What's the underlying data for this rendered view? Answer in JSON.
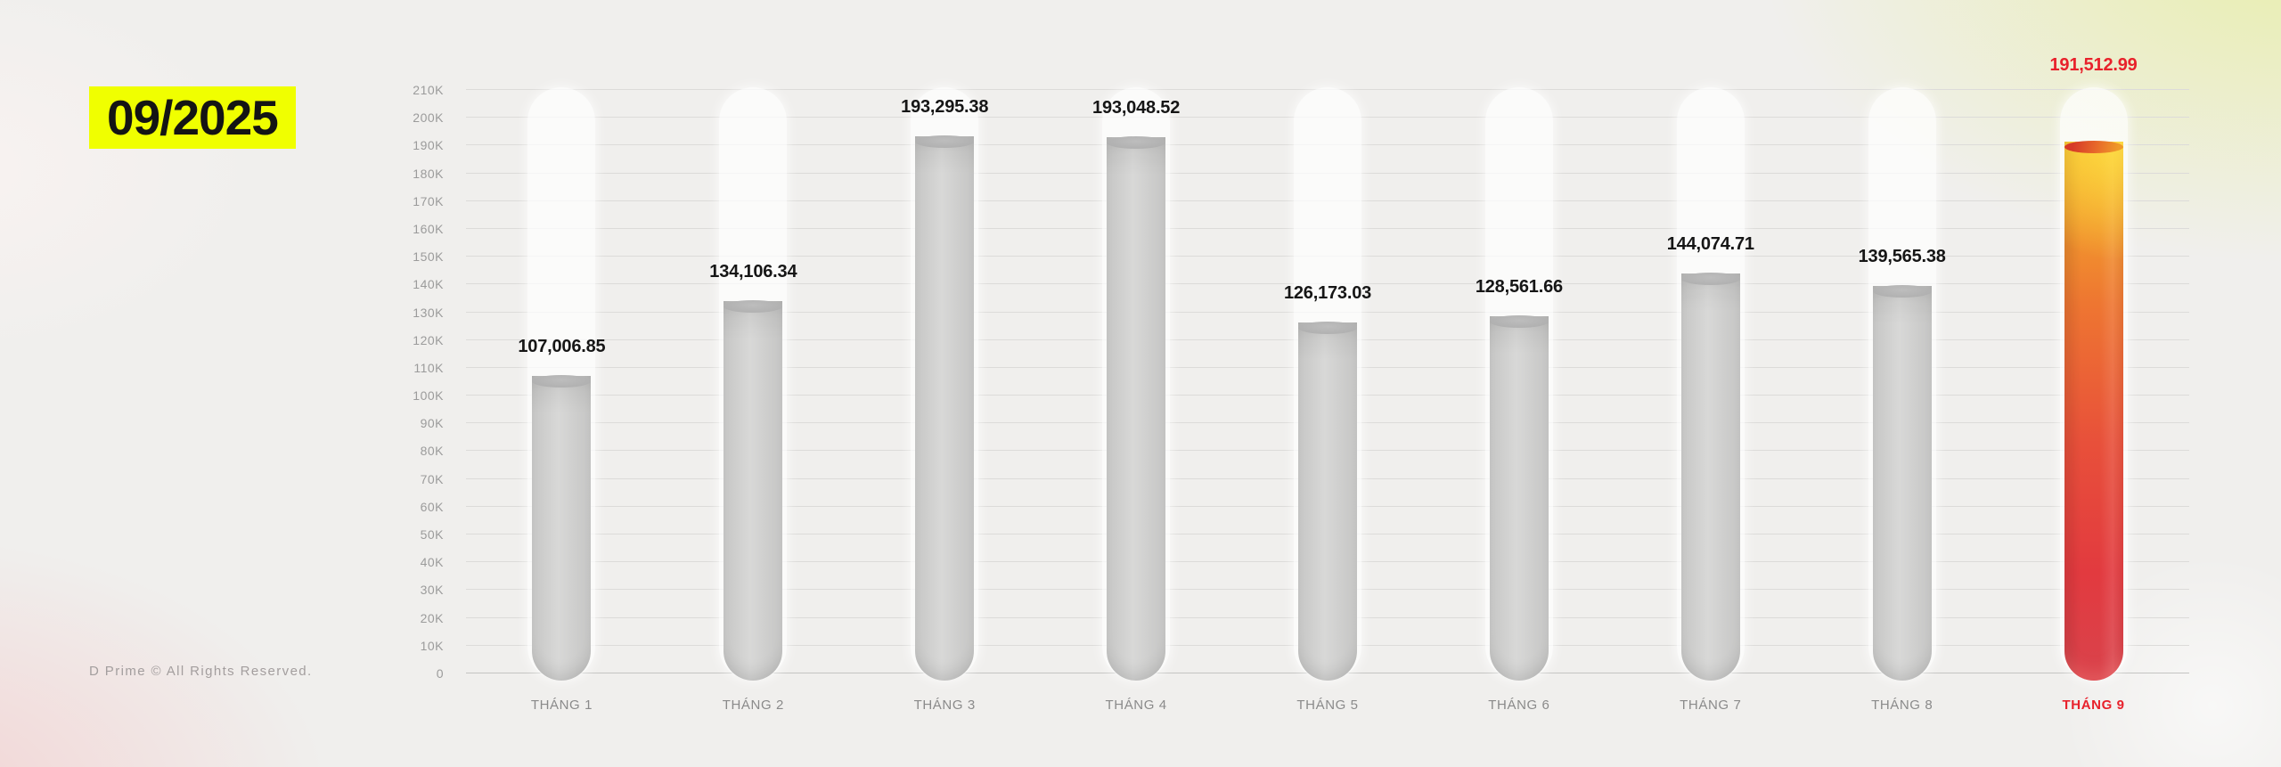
{
  "badge": {
    "label": "09/2025"
  },
  "footer": {
    "text": "D Prime © All Rights Reserved."
  },
  "chart_data": {
    "type": "bar",
    "title": "",
    "categories": [
      "THÁNG 1",
      "THÁNG 2",
      "THÁNG 3",
      "THÁNG 4",
      "THÁNG 5",
      "THÁNG 6",
      "THÁNG 7",
      "THÁNG 8",
      "THÁNG 9"
    ],
    "values": [
      107006.85,
      134106.34,
      193295.38,
      193048.52,
      126173.03,
      128561.66,
      144074.71,
      139565.38,
      191512.99
    ],
    "value_labels": [
      "107,006.85",
      "134,106.34",
      "193,295.38",
      "193,048.52",
      "126,173.03",
      "128,561.66",
      "144,074.71",
      "139,565.38",
      "191,512.99"
    ],
    "ylim": [
      0,
      210000
    ],
    "ytick_step": 10000,
    "ytick_labels": [
      "0",
      "10K",
      "20K",
      "30K",
      "40K",
      "50K",
      "60K",
      "70K",
      "80K",
      "90K",
      "100K",
      "110K",
      "120K",
      "130K",
      "140K",
      "150K",
      "160K",
      "170K",
      "180K",
      "190K",
      "200K",
      "210K"
    ],
    "highlight_index": 8,
    "grid": true,
    "legend": false,
    "colors": {
      "accent_red": "#e8212b",
      "badge_yellow": "#f0ff00",
      "bar_gray": "#cfcfcf",
      "value_label_dark": "#161616",
      "axis_tick_gray": "#9b9b9b",
      "month_label_gray": "#8a8a8a"
    }
  }
}
